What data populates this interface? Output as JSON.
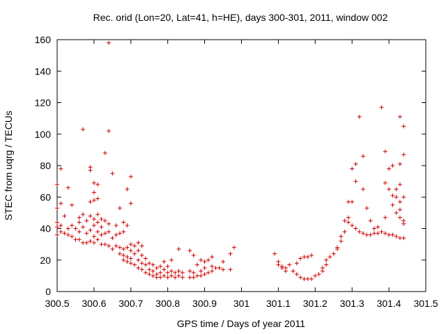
{
  "chart_data": {
    "type": "scatter",
    "title": "Rec. orid (Lon=20, Lat=41, h=HE), days 300-301, 2011, window 002",
    "xlabel": "GPS time / Days of year 2011",
    "ylabel": "STEC from uqrg / TECUs",
    "xlim": [
      300.5,
      301.5
    ],
    "ylim": [
      0,
      160
    ],
    "x_ticks": [
      "300.5",
      "300.6",
      "300.7",
      "300.8",
      "300.9",
      "301",
      "301.1",
      "301.2",
      "301.3",
      "301.4",
      "301.5"
    ],
    "y_ticks": [
      "0",
      "20",
      "40",
      "60",
      "80",
      "100",
      "120",
      "140",
      "160"
    ],
    "grid": false,
    "legend": "none",
    "marker": "+",
    "color": "#cc0000",
    "series": [
      {
        "points": [
          [
            300.5,
            68
          ],
          [
            300.5,
            53
          ],
          [
            300.5,
            44
          ],
          [
            300.5,
            41
          ],
          [
            300.5,
            36
          ],
          [
            300.51,
            78
          ],
          [
            300.51,
            56
          ],
          [
            300.51,
            42
          ],
          [
            300.51,
            38
          ],
          [
            300.52,
            48
          ],
          [
            300.52,
            37
          ],
          [
            300.53,
            66
          ],
          [
            300.53,
            40
          ],
          [
            300.53,
            36
          ],
          [
            300.54,
            55
          ],
          [
            300.54,
            42
          ],
          [
            300.54,
            35
          ],
          [
            300.55,
            40
          ],
          [
            300.55,
            33
          ],
          [
            300.56,
            47
          ],
          [
            300.56,
            44
          ],
          [
            300.56,
            38
          ],
          [
            300.56,
            33
          ],
          [
            300.57,
            103
          ],
          [
            300.57,
            49
          ],
          [
            300.57,
            41
          ],
          [
            300.57,
            31
          ],
          [
            300.58,
            45
          ],
          [
            300.58,
            37
          ],
          [
            300.58,
            31
          ],
          [
            300.59,
            79
          ],
          [
            300.59,
            77
          ],
          [
            300.59,
            57
          ],
          [
            300.59,
            48
          ],
          [
            300.59,
            39
          ],
          [
            300.59,
            32
          ],
          [
            300.6,
            69
          ],
          [
            300.6,
            63
          ],
          [
            300.6,
            58
          ],
          [
            300.6,
            46
          ],
          [
            300.6,
            42
          ],
          [
            300.6,
            35
          ],
          [
            300.6,
            31
          ],
          [
            300.61,
            68
          ],
          [
            300.61,
            59
          ],
          [
            300.61,
            49
          ],
          [
            300.61,
            44
          ],
          [
            300.61,
            38
          ],
          [
            300.61,
            33
          ],
          [
            300.62,
            46
          ],
          [
            300.62,
            41
          ],
          [
            300.62,
            36
          ],
          [
            300.62,
            30
          ],
          [
            300.63,
            88
          ],
          [
            300.63,
            45
          ],
          [
            300.63,
            37
          ],
          [
            300.63,
            30
          ],
          [
            300.64,
            158
          ],
          [
            300.64,
            102
          ],
          [
            300.64,
            43
          ],
          [
            300.64,
            38
          ],
          [
            300.64,
            29
          ],
          [
            300.65,
            75
          ],
          [
            300.65,
            34
          ],
          [
            300.65,
            27
          ],
          [
            300.66,
            42
          ],
          [
            300.66,
            36
          ],
          [
            300.66,
            29
          ],
          [
            300.67,
            53
          ],
          [
            300.67,
            37
          ],
          [
            300.67,
            28
          ],
          [
            300.67,
            24
          ],
          [
            300.68,
            44
          ],
          [
            300.68,
            38
          ],
          [
            300.68,
            27
          ],
          [
            300.68,
            23
          ],
          [
            300.68,
            20
          ],
          [
            300.69,
            65
          ],
          [
            300.69,
            42
          ],
          [
            300.69,
            28
          ],
          [
            300.69,
            22
          ],
          [
            300.69,
            19
          ],
          [
            300.7,
            73
          ],
          [
            300.7,
            56
          ],
          [
            300.7,
            30
          ],
          [
            300.7,
            26
          ],
          [
            300.7,
            21
          ],
          [
            300.7,
            18
          ],
          [
            300.71,
            29
          ],
          [
            300.71,
            24
          ],
          [
            300.71,
            17
          ],
          [
            300.72,
            31
          ],
          [
            300.72,
            26
          ],
          [
            300.72,
            20
          ],
          [
            300.72,
            15
          ],
          [
            300.73,
            29
          ],
          [
            300.73,
            23
          ],
          [
            300.73,
            18
          ],
          [
            300.73,
            14
          ],
          [
            300.74,
            21
          ],
          [
            300.74,
            17
          ],
          [
            300.74,
            12
          ],
          [
            300.75,
            18
          ],
          [
            300.75,
            14
          ],
          [
            300.75,
            11
          ],
          [
            300.76,
            17
          ],
          [
            300.76,
            13
          ],
          [
            300.76,
            10
          ],
          [
            300.77,
            15
          ],
          [
            300.77,
            11
          ],
          [
            300.77,
            9
          ],
          [
            300.78,
            16
          ],
          [
            300.78,
            12
          ],
          [
            300.78,
            9
          ],
          [
            300.79,
            19
          ],
          [
            300.79,
            14
          ],
          [
            300.79,
            10
          ],
          [
            300.8,
            16
          ],
          [
            300.8,
            12
          ],
          [
            300.8,
            9
          ],
          [
            300.81,
            20
          ],
          [
            300.81,
            13
          ],
          [
            300.81,
            10
          ],
          [
            300.82,
            12
          ],
          [
            300.82,
            9
          ],
          [
            300.83,
            27
          ],
          [
            300.83,
            13
          ],
          [
            300.83,
            10
          ],
          [
            300.84,
            12
          ],
          [
            300.84,
            9
          ],
          [
            300.86,
            26
          ],
          [
            300.86,
            13
          ],
          [
            300.86,
            9
          ],
          [
            300.87,
            23
          ],
          [
            300.87,
            12
          ],
          [
            300.87,
            9
          ],
          [
            300.88,
            17
          ],
          [
            300.88,
            10
          ],
          [
            300.89,
            20
          ],
          [
            300.89,
            13
          ],
          [
            300.89,
            10
          ],
          [
            300.9,
            19
          ],
          [
            300.9,
            15
          ],
          [
            300.9,
            11
          ],
          [
            300.91,
            20
          ],
          [
            300.91,
            12
          ],
          [
            300.92,
            22
          ],
          [
            300.92,
            16
          ],
          [
            300.92,
            13
          ],
          [
            300.93,
            15
          ],
          [
            300.94,
            15
          ],
          [
            300.95,
            19
          ],
          [
            300.95,
            14
          ],
          [
            300.97,
            24
          ],
          [
            300.97,
            14
          ],
          [
            300.98,
            28
          ],
          [
            301.09,
            24
          ],
          [
            301.1,
            19
          ],
          [
            301.1,
            17
          ],
          [
            301.11,
            16
          ],
          [
            301.11,
            15
          ],
          [
            301.12,
            15
          ],
          [
            301.12,
            13
          ],
          [
            301.13,
            17
          ],
          [
            301.14,
            13
          ],
          [
            301.15,
            18
          ],
          [
            301.15,
            11
          ],
          [
            301.16,
            21
          ],
          [
            301.16,
            9
          ],
          [
            301.17,
            22
          ],
          [
            301.17,
            8
          ],
          [
            301.18,
            22
          ],
          [
            301.18,
            8
          ],
          [
            301.19,
            23
          ],
          [
            301.19,
            8
          ],
          [
            301.2,
            10
          ],
          [
            301.21,
            11
          ],
          [
            301.22,
            13
          ],
          [
            301.22,
            15
          ],
          [
            301.23,
            17
          ],
          [
            301.23,
            20
          ],
          [
            301.24,
            22
          ],
          [
            301.25,
            24
          ],
          [
            301.26,
            27
          ],
          [
            301.26,
            28
          ],
          [
            301.27,
            32
          ],
          [
            301.27,
            35
          ],
          [
            301.28,
            45
          ],
          [
            301.28,
            38
          ],
          [
            301.29,
            47
          ],
          [
            301.29,
            57
          ],
          [
            301.29,
            44
          ],
          [
            301.3,
            57
          ],
          [
            301.3,
            78
          ],
          [
            301.3,
            42
          ],
          [
            301.31,
            81
          ],
          [
            301.31,
            70
          ],
          [
            301.31,
            40
          ],
          [
            301.32,
            111
          ],
          [
            301.32,
            38
          ],
          [
            301.33,
            86
          ],
          [
            301.33,
            65
          ],
          [
            301.33,
            37
          ],
          [
            301.34,
            53
          ],
          [
            301.34,
            36
          ],
          [
            301.35,
            45
          ],
          [
            301.35,
            36
          ],
          [
            301.36,
            40
          ],
          [
            301.36,
            37
          ],
          [
            301.37,
            41
          ],
          [
            301.37,
            37
          ],
          [
            301.38,
            117
          ],
          [
            301.38,
            38
          ],
          [
            301.39,
            89
          ],
          [
            301.39,
            69
          ],
          [
            301.39,
            47
          ],
          [
            301.39,
            37
          ],
          [
            301.4,
            78
          ],
          [
            301.4,
            65
          ],
          [
            301.4,
            36
          ],
          [
            301.41,
            80
          ],
          [
            301.41,
            61
          ],
          [
            301.41,
            55
          ],
          [
            301.41,
            36
          ],
          [
            301.42,
            65
          ],
          [
            301.42,
            60
          ],
          [
            301.42,
            50
          ],
          [
            301.42,
            35
          ],
          [
            301.43,
            111
          ],
          [
            301.43,
            81
          ],
          [
            301.43,
            68
          ],
          [
            301.43,
            57
          ],
          [
            301.43,
            52
          ],
          [
            301.43,
            47
          ],
          [
            301.43,
            34
          ],
          [
            301.44,
            105
          ],
          [
            301.44,
            87
          ],
          [
            301.44,
            60
          ],
          [
            301.44,
            45
          ],
          [
            301.44,
            43
          ],
          [
            301.44,
            34
          ]
        ]
      }
    ]
  }
}
